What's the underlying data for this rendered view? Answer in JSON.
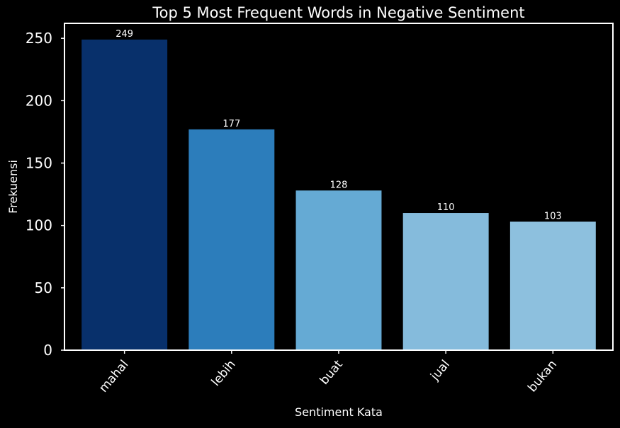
{
  "chart_data": {
    "type": "bar",
    "title": "Top 5 Most Frequent Words in Negative Sentiment",
    "xlabel": "Sentiment Kata",
    "ylabel": "Frekuensi",
    "categories": [
      "mahal",
      "lebih",
      "buat",
      "jual",
      "bukan"
    ],
    "values": [
      249,
      177,
      128,
      110,
      103
    ],
    "value_labels": [
      "249",
      "177",
      "128",
      "110",
      "103"
    ],
    "bar_colors": [
      "#08306b",
      "#2c7dbb",
      "#65aad4",
      "#85bbdc",
      "#8dc0de"
    ],
    "ylim": [
      0,
      262
    ],
    "yticks": [
      0,
      50,
      100,
      150,
      200,
      250
    ],
    "ytick_labels": [
      "0",
      "50",
      "100",
      "150",
      "200",
      "250"
    ],
    "grid": false,
    "background": "#000000",
    "axis_color": "#ffffff",
    "text_color": "#ffffff"
  }
}
